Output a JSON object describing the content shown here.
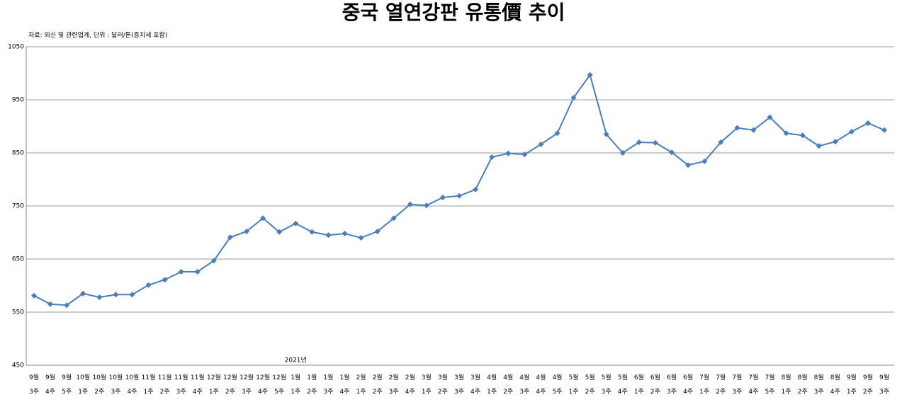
{
  "chart_data": {
    "type": "line",
    "title": "중국 열연강판 유통價 추이",
    "subtitle": "자료: 외신 및 관련업계, 단위 : 달러/톤(증치세 포함)",
    "annotation": "2021년",
    "categories": [
      "9월\n3주",
      "9월\n4주",
      "9월\n5주",
      "10월\n1주",
      "10월\n2주",
      "10월\n3주",
      "10월\n4주",
      "11월\n1주",
      "11월\n2주",
      "11월\n3주",
      "11월\n4주",
      "12월\n1주",
      "12월\n2주",
      "12월\n3주",
      "12월\n4주",
      "12월\n5주",
      "1월\n1주",
      "1월\n2주",
      "1월\n3주",
      "1월\n4주",
      "2월\n1주",
      "2월\n2주",
      "2월\n3주",
      "2월\n4주",
      "3월\n1주",
      "3월\n2주",
      "3월\n3주",
      "3월\n4주",
      "4월\n1주",
      "4월\n2주",
      "4월\n3주",
      "4월\n4주",
      "4월\n5주",
      "5월\n1주",
      "5월\n2주",
      "5월\n3주",
      "5월\n4주",
      "6월\n1주",
      "6월\n2주",
      "6월\n3주",
      "6월\n4주",
      "7월\n1주",
      "7월\n2주",
      "7월\n3주",
      "7월\n4주",
      "7월\n5주",
      "8월\n1주",
      "8월\n2주",
      "8월\n3주",
      "8월\n4주",
      "9월\n1주",
      "9월\n2주",
      "9월\n3주"
    ],
    "values": [
      581,
      565,
      563,
      585,
      578,
      583,
      583,
      601,
      611,
      626,
      626,
      647,
      691,
      702,
      727,
      701,
      717,
      701,
      695,
      698,
      690,
      702,
      727,
      753,
      751,
      766,
      769,
      781,
      842,
      849,
      847,
      866,
      887,
      954,
      997,
      885,
      850,
      870,
      869,
      851,
      827,
      834,
      870,
      897,
      893,
      917,
      887,
      883,
      863,
      871,
      890,
      906,
      893
    ],
    "color": "#4a7ebb",
    "ylim": [
      450,
      1050
    ],
    "yticks": [
      450,
      550,
      650,
      750,
      850,
      950,
      1050
    ],
    "grid": true
  }
}
